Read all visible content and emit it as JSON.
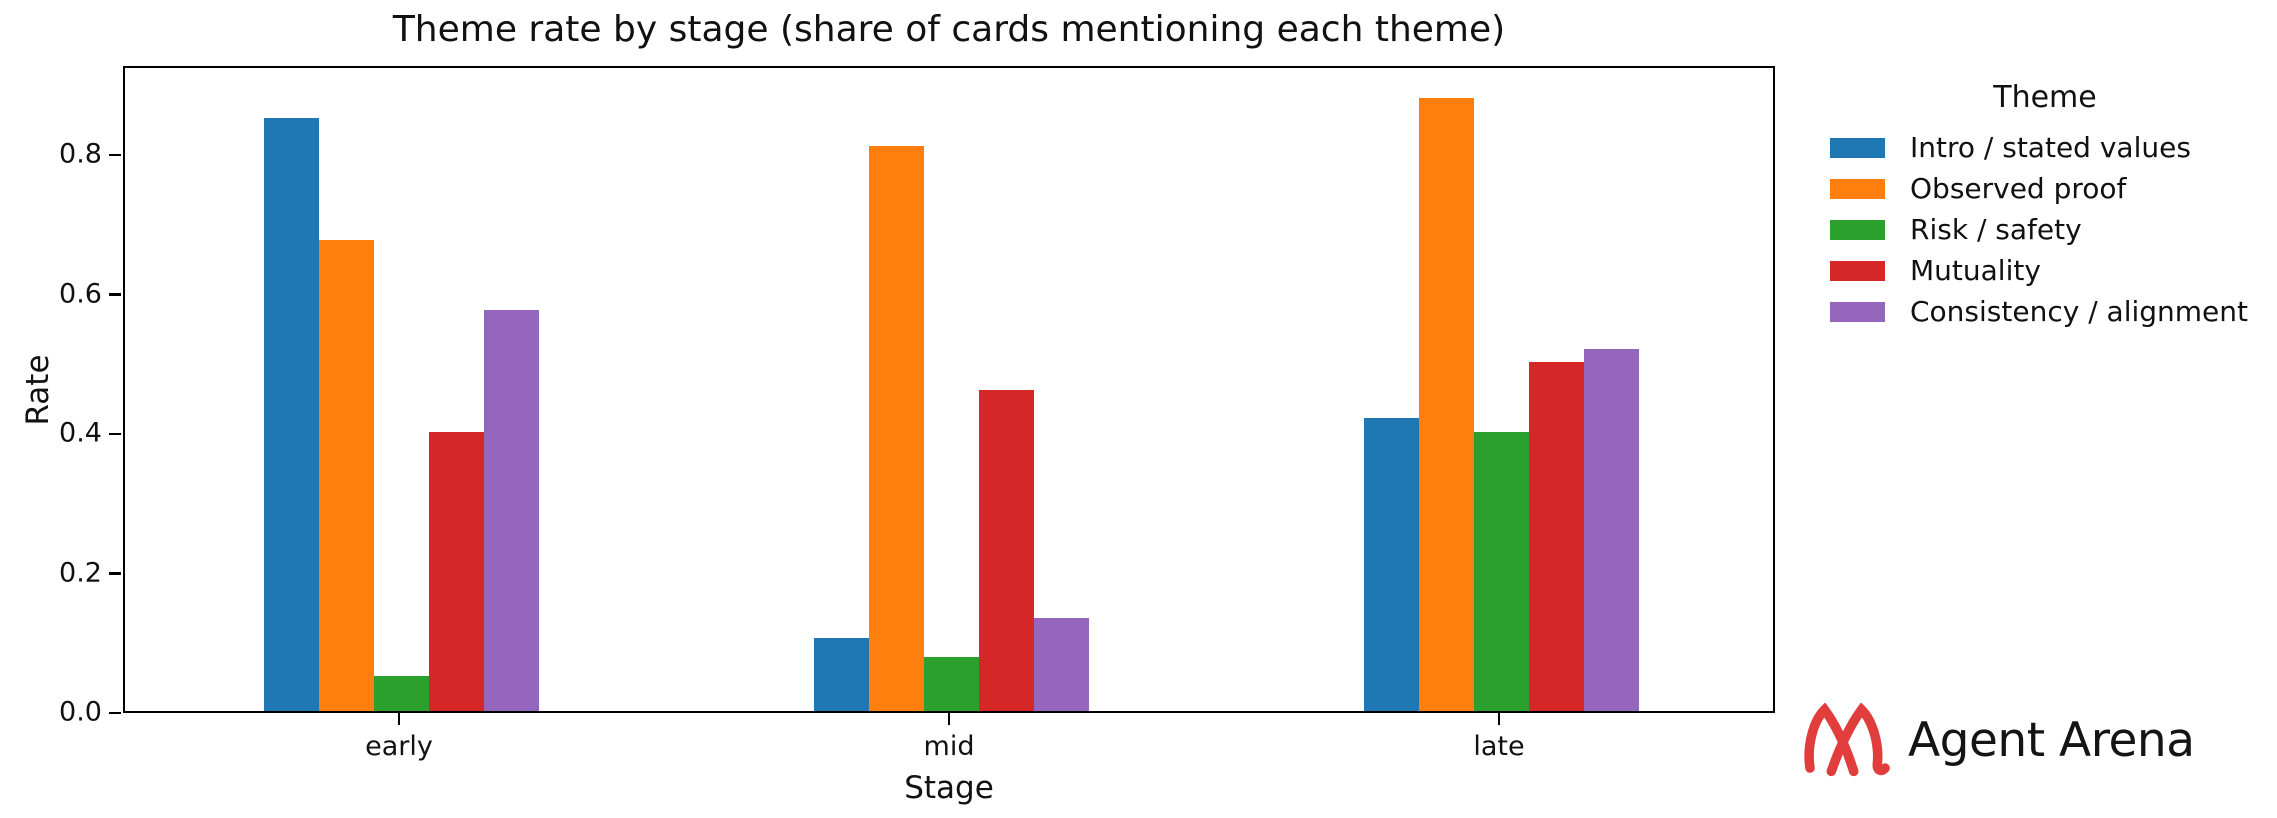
{
  "chart_data": {
    "type": "bar",
    "title": "Theme rate by stage (share of cards mentioning each theme)",
    "xlabel": "Stage",
    "ylabel": "Rate",
    "categories": [
      "early",
      "mid",
      "late"
    ],
    "series": [
      {
        "name": "Intro / stated values",
        "color": "#1f77b4",
        "values": [
          0.85,
          0.105,
          0.42
        ]
      },
      {
        "name": "Observed proof",
        "color": "#ff7f0e",
        "values": [
          0.675,
          0.81,
          0.88
        ]
      },
      {
        "name": "Risk / safety",
        "color": "#2ca02c",
        "values": [
          0.05,
          0.078,
          0.4
        ]
      },
      {
        "name": "Mutuality",
        "color": "#d62728",
        "values": [
          0.4,
          0.46,
          0.5
        ]
      },
      {
        "name": "Consistency / alignment",
        "color": "#9467bd",
        "values": [
          0.575,
          0.133,
          0.52
        ]
      }
    ],
    "legend_title": "Theme",
    "legend_position": "right-outside",
    "y_ticks": [
      0.0,
      0.2,
      0.4,
      0.6,
      0.8
    ],
    "y_tick_labels": [
      "0.0",
      "0.2",
      "0.4",
      "0.6",
      "0.8"
    ],
    "ylim": [
      0,
      0.928
    ],
    "grid": false
  },
  "branding": {
    "logo_text": "Agent Arena",
    "logo_color": "#e23d3d"
  },
  "colors": {
    "axis": "#000000",
    "text": "#111111"
  }
}
